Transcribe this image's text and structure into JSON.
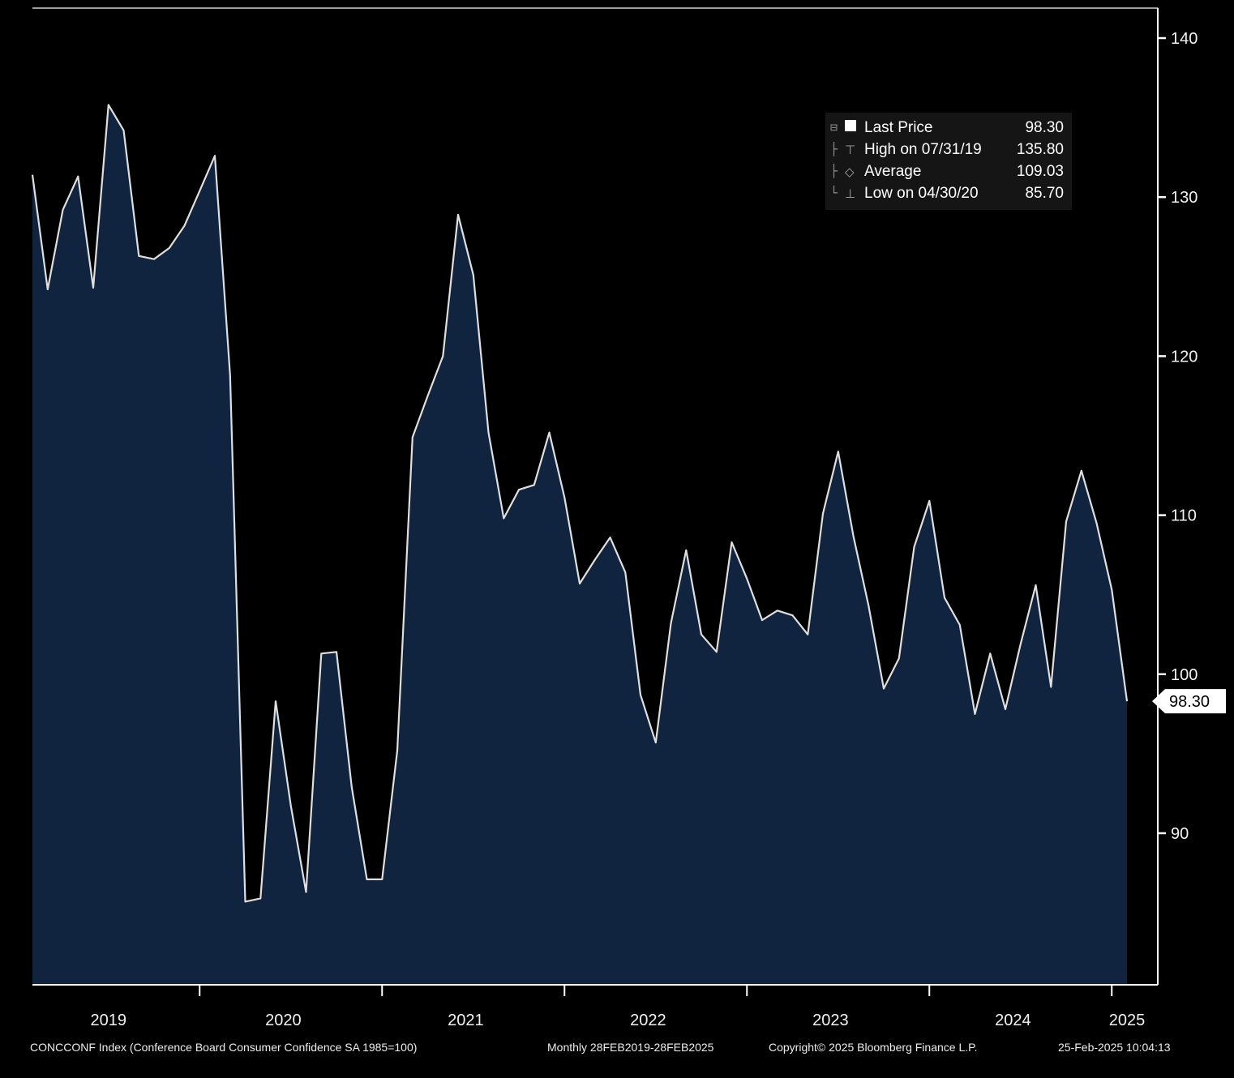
{
  "chart_data": {
    "type": "area",
    "title": "CONCCONF Index (Conference Board Consumer Confidence SA 1985=100)",
    "frequency": "Monthly",
    "x_range": "28FEB2019-28FEB2025",
    "x_label_years": [
      "2019",
      "2020",
      "2021",
      "2022",
      "2023",
      "2024",
      "2025"
    ],
    "yticks": [
      90,
      100,
      110,
      120,
      130,
      140
    ],
    "ylim": [
      80.5,
      141.9
    ],
    "grid": false,
    "legend_position": "top-right",
    "series": [
      {
        "name": "CONCCONF Index Last Price",
        "start_month": "2019-02",
        "values": [
          131.4,
          124.2,
          129.2,
          131.3,
          124.3,
          135.8,
          134.2,
          126.3,
          126.1,
          126.8,
          128.2,
          130.4,
          132.6,
          118.8,
          85.7,
          85.9,
          98.3,
          91.7,
          86.3,
          101.3,
          101.4,
          92.9,
          87.1,
          87.1,
          95.2,
          114.9,
          117.5,
          120.0,
          128.9,
          125.1,
          115.2,
          109.8,
          111.6,
          111.9,
          115.2,
          111.1,
          105.7,
          107.2,
          108.6,
          106.4,
          98.7,
          95.7,
          103.2,
          107.8,
          102.5,
          101.4,
          108.3,
          106.0,
          103.4,
          104.0,
          103.7,
          102.5,
          110.1,
          114.0,
          108.7,
          104.3,
          99.1,
          101.0,
          108.0,
          110.9,
          104.8,
          103.1,
          97.5,
          101.3,
          97.8,
          101.9,
          105.6,
          99.2,
          109.6,
          112.8,
          109.5,
          105.3,
          98.3
        ]
      }
    ],
    "stats": {
      "last": 98.3,
      "high": 135.8,
      "high_date": "07/31/19",
      "average": 109.03,
      "low": 85.7,
      "low_date": "04/30/20"
    },
    "colors": {
      "background": "#000000",
      "area_fill": "#10243f",
      "line": "#dfdfdf",
      "axis": "#ffffff",
      "flag_bg": "#ffffff",
      "flag_text": "#000000"
    }
  },
  "legend": {
    "rows": [
      {
        "label": "Last Price",
        "value": "98.30"
      },
      {
        "label": "High on 07/31/19",
        "value": "135.80"
      },
      {
        "label": "Average",
        "value": "109.03"
      },
      {
        "label": "Low on 04/30/20",
        "value": "85.70"
      }
    ]
  },
  "icons": {
    "collapse_box": "⊟",
    "tree_branch": "├",
    "tree_end": "└",
    "high_marker": "⊤",
    "average_marker": "◇",
    "low_marker": "⊥"
  },
  "last_price_flag": "98.30",
  "footer": {
    "description": "CONCCONF Index (Conference Board Consumer Confidence SA 1985=100)",
    "periodicity": "Monthly 28FEB2019-28FEB2025",
    "copyright": "Copyright© 2025 Bloomberg Finance L.P.",
    "timestamp": "25-Feb-2025 10:04:13"
  }
}
